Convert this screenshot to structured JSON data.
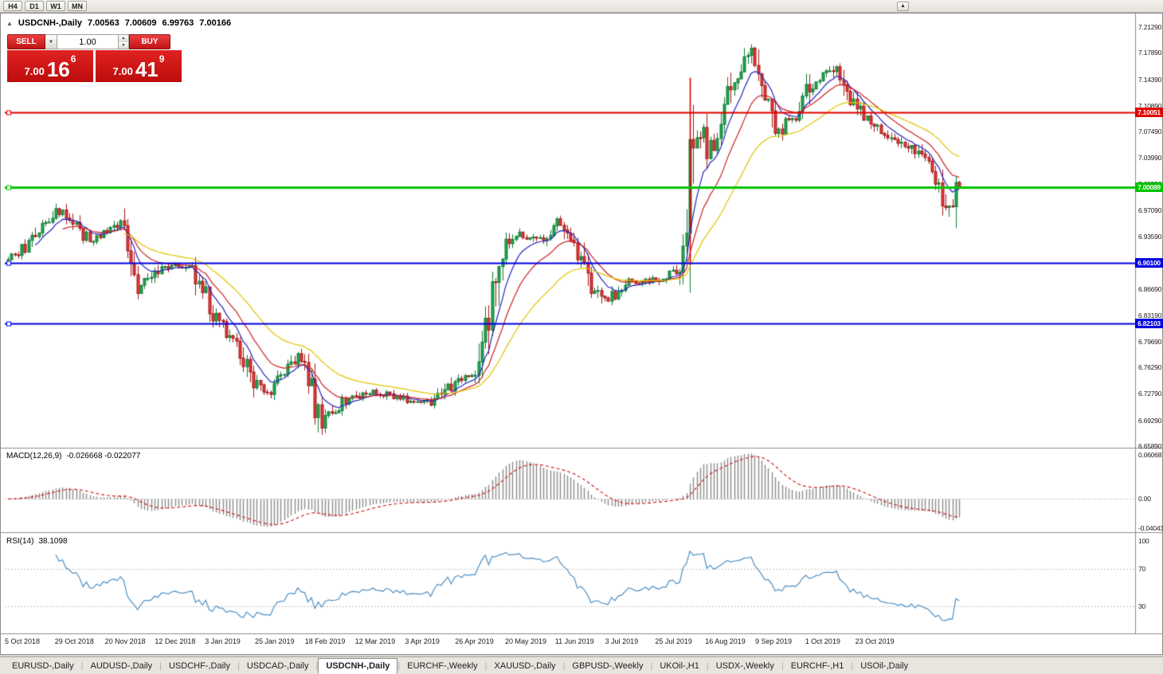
{
  "toolbar": {
    "timeframes": [
      "H4",
      "D1",
      "W1",
      "MN"
    ]
  },
  "icons": {
    "collapse": "▲",
    "dropdown": "▼",
    "spin_up": "▲",
    "spin_down": "▼",
    "menubar_button": "▲"
  },
  "chart": {
    "symbol_period": "USDCNH-,Daily",
    "open": "7.00563",
    "high": "7.00609",
    "low": "6.99763",
    "close": "7.00166"
  },
  "trade_panel": {
    "sell_label": "SELL",
    "buy_label": "BUY",
    "volume": "1.00",
    "sell_price": {
      "big": "7.00",
      "mid": "16",
      "sup": "6"
    },
    "buy_price": {
      "big": "7.00",
      "mid": "41",
      "sup": "9"
    }
  },
  "y_axis": {
    "ticks": [
      "7.21290",
      "7.17890",
      "7.14390",
      "7.10890",
      "7.07490",
      "7.03990",
      "7.00590",
      "6.97090",
      "6.93590",
      "6.90090",
      "6.86690",
      "6.83190",
      "6.79690",
      "6.76290",
      "6.72790",
      "6.69290",
      "6.65890"
    ]
  },
  "levels": [
    {
      "label": "7.10051",
      "price": 7.10051,
      "color": "#e00000",
      "width": 2
    },
    {
      "label": "7.00089",
      "price": 7.00089,
      "color": "#00c400",
      "width": 3
    },
    {
      "label": "6.90100",
      "price": 6.901,
      "color": "#0000e0",
      "width": 2
    },
    {
      "label": "6.82103",
      "price": 6.82103,
      "color": "#0000e0",
      "width": 2
    }
  ],
  "macd": {
    "title": "MACD(12,26,9)",
    "values": "-0.026668 -0.022077",
    "axis": [
      {
        "label": "0.060687",
        "value": 0.060687
      },
      {
        "label": "0.00",
        "value": 0
      },
      {
        "label": "-0.040431",
        "value": -0.040431
      }
    ]
  },
  "rsi": {
    "title": "RSI(14)",
    "value": "38.1098",
    "axis": [
      {
        "label": "100",
        "value": 100
      },
      {
        "label": "70",
        "value": 70
      },
      {
        "label": "30",
        "value": 30
      }
    ],
    "levels": [
      70,
      30
    ]
  },
  "x_axis": {
    "labels": [
      "5 Oct 2018",
      "29 Oct 2018",
      "20 Nov 2018",
      "12 Dec 2018",
      "3 Jan 2019",
      "25 Jan 2019",
      "18 Feb 2019",
      "12 Mar 2019",
      "3 Apr 2019",
      "26 Apr 2019",
      "20 May 2019",
      "11 Jun 2019",
      "3 Jul 2019",
      "25 Jul 2019",
      "16 Aug 2019",
      "9 Sep 2019",
      "1 Oct 2019",
      "23 Oct 2019"
    ]
  },
  "tabs": {
    "active_index": 4,
    "items": [
      "EURUSD-,Daily",
      "AUDUSD-,Daily",
      "USDCHF-,Daily",
      "USDCAD-,Daily",
      "USDCNH-,Daily",
      "EURCHF-,Weekly",
      "XAUUSD-,Daily",
      "GBPUSD-,Weekly",
      "UKOil-,H1",
      "USDX-,Weekly",
      "EURCHF-,H1",
      "USOil-,Daily"
    ],
    "separator": "|"
  },
  "chart_data": {
    "type": "candlestick",
    "symbol": "USDCNH-",
    "timeframe": "Daily",
    "n_candles": 280,
    "last_close": 7.00166,
    "price_range_visible": [
      6.6557,
      7.2287
    ],
    "price_anchors": [
      [
        0,
        6.905
      ],
      [
        5,
        6.92
      ],
      [
        16,
        6.975
      ],
      [
        24,
        6.93
      ],
      [
        33,
        6.955
      ],
      [
        39,
        6.872
      ],
      [
        47,
        6.895
      ],
      [
        54,
        6.9
      ],
      [
        61,
        6.832
      ],
      [
        68,
        6.79
      ],
      [
        75,
        6.722
      ],
      [
        80,
        6.75
      ],
      [
        87,
        6.78
      ],
      [
        92,
        6.692
      ],
      [
        99,
        6.72
      ],
      [
        107,
        6.732
      ],
      [
        117,
        6.722
      ],
      [
        125,
        6.716
      ],
      [
        131,
        6.74
      ],
      [
        137,
        6.752
      ],
      [
        140,
        6.8
      ],
      [
        145,
        6.92
      ],
      [
        150,
        6.94
      ],
      [
        157,
        6.93
      ],
      [
        162,
        6.955
      ],
      [
        167,
        6.92
      ],
      [
        171,
        6.872
      ],
      [
        176,
        6.848
      ],
      [
        182,
        6.876
      ],
      [
        190,
        6.878
      ],
      [
        197,
        6.89
      ],
      [
        199,
        6.925
      ],
      [
        201,
        7.045
      ],
      [
        204,
        7.09
      ],
      [
        206,
        7.05
      ],
      [
        209,
        7.062
      ],
      [
        212,
        7.13
      ],
      [
        216,
        7.16
      ],
      [
        219,
        7.178
      ],
      [
        222,
        7.13
      ],
      [
        226,
        7.066
      ],
      [
        229,
        7.085
      ],
      [
        232,
        7.09
      ],
      [
        236,
        7.14
      ],
      [
        239,
        7.145
      ],
      [
        243,
        7.16
      ],
      [
        246,
        7.135
      ],
      [
        250,
        7.1
      ],
      [
        254,
        7.085
      ],
      [
        259,
        7.07
      ],
      [
        264,
        7.058
      ],
      [
        268,
        7.044
      ],
      [
        272,
        7.02
      ],
      [
        275,
        6.975
      ],
      [
        277,
        6.962
      ],
      [
        279,
        7.00166
      ]
    ],
    "annotations": [
      {
        "type": "vline-segment",
        "index": 200,
        "from": 6.897,
        "to": 7.146,
        "color": "#e00000"
      }
    ],
    "ma_lines": [
      {
        "name": "ma-fast",
        "period": 8,
        "color": "#2424c0"
      },
      {
        "name": "ma-mid",
        "period": 16,
        "color": "#cc2222"
      },
      {
        "name": "ma-slow",
        "period": 34,
        "color": "#e0c400"
      }
    ],
    "colors": {
      "candle_up": "#21a94f",
      "candle_up_border": "#117a36",
      "candle_down": "#e33b3b",
      "candle_down_border": "#a61515",
      "macd_histogram": "#8c8c8c",
      "macd_signal": "#d01010",
      "rsi_line": "#4d8fc4",
      "level_dotted": "#c4c4c4"
    }
  }
}
